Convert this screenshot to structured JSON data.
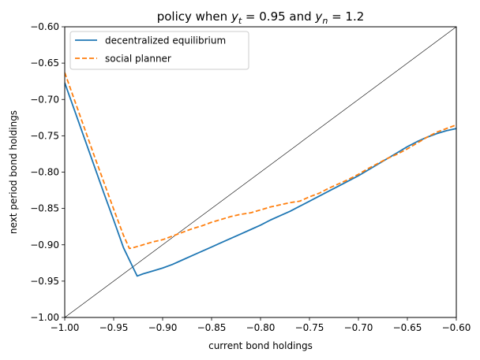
{
  "chart_data": {
    "type": "line",
    "title_main": "policy when ",
    "title_sym1": "y",
    "title_sub1": "t",
    "title_mid": " = 0.95 and ",
    "title_sym2": "y",
    "title_sub2": "n",
    "title_end": " = 1.2",
    "xlabel": "current bond holdings",
    "ylabel": "next period bond holdings",
    "xlim": [
      -1.0,
      -0.6
    ],
    "ylim": [
      -1.0,
      -0.6
    ],
    "xticks": [
      -1.0,
      -0.95,
      -0.9,
      -0.85,
      -0.8,
      -0.75,
      -0.7,
      -0.65,
      -0.6
    ],
    "yticks": [
      -1.0,
      -0.95,
      -0.9,
      -0.85,
      -0.8,
      -0.75,
      -0.7,
      -0.65,
      -0.6
    ],
    "xtick_labels": [
      "−1.00",
      "−0.95",
      "−0.90",
      "−0.85",
      "−0.80",
      "−0.75",
      "−0.70",
      "−0.65",
      "−0.60"
    ],
    "ytick_labels": [
      "−1.00",
      "−0.95",
      "−0.90",
      "−0.85",
      "−0.80",
      "−0.75",
      "−0.70",
      "−0.65",
      "−0.60"
    ],
    "legend_position": "top-left",
    "grid": false,
    "reference_line": {
      "color": "#000000",
      "points": [
        [
          -1.0,
          -1.0
        ],
        [
          -0.6,
          -0.6
        ]
      ]
    },
    "series": [
      {
        "name": "decentralized equilibrium",
        "color": "#1f77b4",
        "style": "solid",
        "points": [
          [
            -1.0,
            -0.677
          ],
          [
            -0.99,
            -0.715
          ],
          [
            -0.98,
            -0.753
          ],
          [
            -0.97,
            -0.791
          ],
          [
            -0.96,
            -0.829
          ],
          [
            -0.95,
            -0.866
          ],
          [
            -0.94,
            -0.904
          ],
          [
            -0.93,
            -0.932
          ],
          [
            -0.926,
            -0.943
          ],
          [
            -0.92,
            -0.94
          ],
          [
            -0.91,
            -0.936
          ],
          [
            -0.9,
            -0.932
          ],
          [
            -0.89,
            -0.927
          ],
          [
            -0.88,
            -0.921
          ],
          [
            -0.87,
            -0.915
          ],
          [
            -0.86,
            -0.909
          ],
          [
            -0.85,
            -0.903
          ],
          [
            -0.84,
            -0.897
          ],
          [
            -0.83,
            -0.891
          ],
          [
            -0.82,
            -0.885
          ],
          [
            -0.81,
            -0.879
          ],
          [
            -0.8,
            -0.873
          ],
          [
            -0.79,
            -0.866
          ],
          [
            -0.78,
            -0.86
          ],
          [
            -0.77,
            -0.854
          ],
          [
            -0.76,
            -0.847
          ],
          [
            -0.75,
            -0.84
          ],
          [
            -0.74,
            -0.833
          ],
          [
            -0.73,
            -0.826
          ],
          [
            -0.72,
            -0.819
          ],
          [
            -0.71,
            -0.812
          ],
          [
            -0.7,
            -0.805
          ],
          [
            -0.69,
            -0.797
          ],
          [
            -0.68,
            -0.789
          ],
          [
            -0.67,
            -0.781
          ],
          [
            -0.66,
            -0.773
          ],
          [
            -0.65,
            -0.765
          ],
          [
            -0.64,
            -0.758
          ],
          [
            -0.63,
            -0.752
          ],
          [
            -0.62,
            -0.747
          ],
          [
            -0.61,
            -0.743
          ],
          [
            -0.6,
            -0.74
          ]
        ]
      },
      {
        "name": "social planner",
        "color": "#ff7f0e",
        "style": "dashed",
        "points": [
          [
            -1.0,
            -0.663
          ],
          [
            -0.99,
            -0.701
          ],
          [
            -0.98,
            -0.739
          ],
          [
            -0.97,
            -0.777
          ],
          [
            -0.96,
            -0.814
          ],
          [
            -0.95,
            -0.851
          ],
          [
            -0.94,
            -0.887
          ],
          [
            -0.934,
            -0.905
          ],
          [
            -0.93,
            -0.904
          ],
          [
            -0.92,
            -0.9
          ],
          [
            -0.91,
            -0.896
          ],
          [
            -0.9,
            -0.893
          ],
          [
            -0.89,
            -0.888
          ],
          [
            -0.88,
            -0.883
          ],
          [
            -0.87,
            -0.878
          ],
          [
            -0.86,
            -0.874
          ],
          [
            -0.85,
            -0.869
          ],
          [
            -0.84,
            -0.865
          ],
          [
            -0.83,
            -0.861
          ],
          [
            -0.82,
            -0.858
          ],
          [
            -0.81,
            -0.856
          ],
          [
            -0.8,
            -0.852
          ],
          [
            -0.79,
            -0.848
          ],
          [
            -0.78,
            -0.845
          ],
          [
            -0.77,
            -0.842
          ],
          [
            -0.76,
            -0.84
          ],
          [
            -0.75,
            -0.834
          ],
          [
            -0.74,
            -0.829
          ],
          [
            -0.73,
            -0.822
          ],
          [
            -0.72,
            -0.816
          ],
          [
            -0.71,
            -0.81
          ],
          [
            -0.7,
            -0.803
          ],
          [
            -0.69,
            -0.795
          ],
          [
            -0.68,
            -0.788
          ],
          [
            -0.67,
            -0.781
          ],
          [
            -0.66,
            -0.775
          ],
          [
            -0.65,
            -0.768
          ],
          [
            -0.64,
            -0.76
          ],
          [
            -0.63,
            -0.752
          ],
          [
            -0.62,
            -0.745
          ],
          [
            -0.61,
            -0.74
          ],
          [
            -0.6,
            -0.735
          ]
        ]
      }
    ]
  }
}
